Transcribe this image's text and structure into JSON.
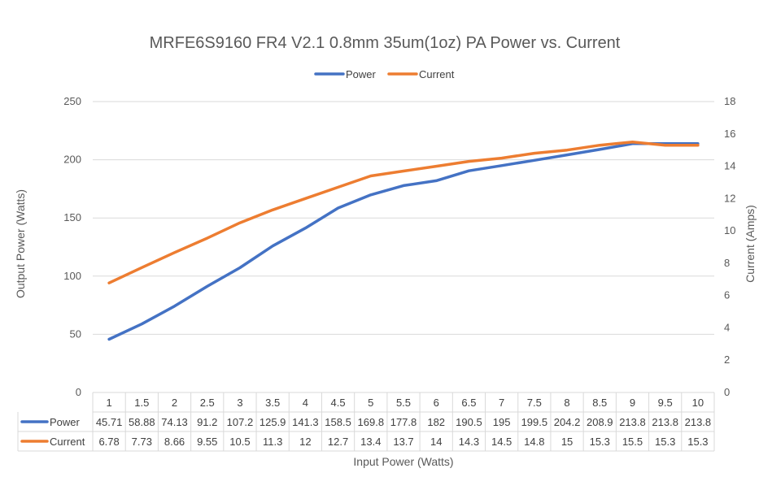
{
  "chart_data": {
    "type": "line",
    "title": "MRFE6S9160 FR4 V2.1  0.8mm 35um(1oz) PA Power vs. Current",
    "xlabel": "Input Power (Watts)",
    "ylabel": "Output Power (Watts)",
    "y2label": "Current (Amps)",
    "ylim": [
      0,
      250
    ],
    "y2lim": [
      0,
      18
    ],
    "yticks": [
      "0",
      "50",
      "100",
      "150",
      "200",
      "250"
    ],
    "y2ticks": [
      "0",
      "2",
      "4",
      "6",
      "8",
      "10",
      "12",
      "14",
      "16",
      "18"
    ],
    "legend_position": "top",
    "has_data_table": true,
    "grid": true,
    "categories": [
      "1",
      "1.5",
      "2",
      "2.5",
      "3",
      "3.5",
      "4",
      "4.5",
      "5",
      "5.5",
      "6",
      "6.5",
      "7",
      "7.5",
      "8",
      "8.5",
      "9",
      "9.5",
      "10"
    ],
    "series": [
      {
        "name": "Power",
        "axis": "left",
        "color": "#4472C4",
        "values": [
          45.71,
          58.88,
          74.13,
          91.2,
          107.2,
          125.9,
          141.3,
          158.5,
          169.8,
          177.8,
          182,
          190.5,
          195,
          199.5,
          204.2,
          208.9,
          213.8,
          213.8,
          213.8
        ]
      },
      {
        "name": "Current",
        "axis": "right",
        "color": "#ED7D31",
        "values": [
          6.78,
          7.73,
          8.66,
          9.55,
          10.5,
          11.3,
          12,
          12.7,
          13.4,
          13.7,
          14,
          14.3,
          14.5,
          14.8,
          15,
          15.3,
          15.5,
          15.3,
          15.3
        ]
      }
    ]
  }
}
